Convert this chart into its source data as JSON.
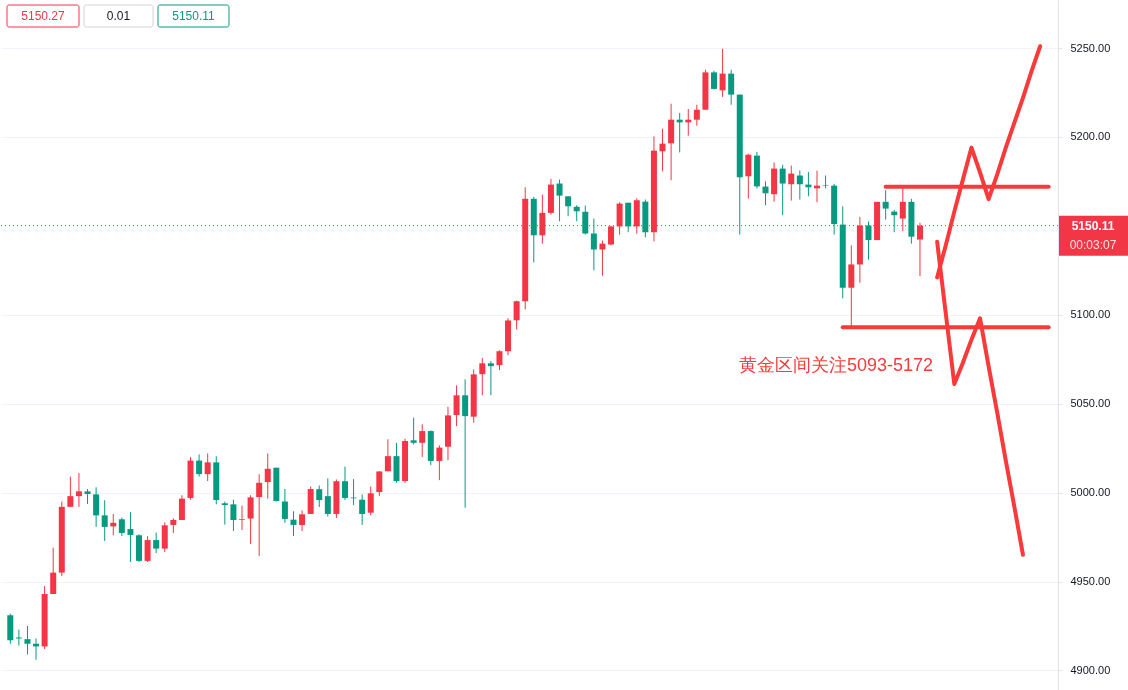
{
  "chart_data": {
    "type": "candlestick",
    "categories": [
      null,
      null,
      null,
      null,
      null,
      null,
      null,
      null,
      null,
      null,
      null,
      null,
      null,
      null,
      null,
      null,
      null,
      null,
      null,
      null,
      null,
      null,
      null,
      null,
      null,
      null,
      null,
      null,
      null,
      null,
      null,
      null,
      null,
      null,
      null,
      null,
      null,
      null,
      null,
      null,
      null,
      null,
      null,
      null,
      null,
      null,
      null,
      null,
      null,
      null,
      null,
      null,
      null,
      null,
      null,
      null,
      null,
      null,
      null,
      null,
      null,
      null,
      null,
      null,
      null,
      null,
      null,
      null,
      null,
      null,
      null,
      null,
      null,
      null,
      null,
      null,
      null,
      null,
      null,
      null,
      null,
      null,
      null,
      null,
      null,
      null,
      null,
      null,
      null,
      null,
      null,
      null,
      null,
      null,
      null,
      null,
      null,
      null,
      null,
      null,
      null,
      null,
      null,
      null,
      null,
      null,
      null,
      null,
      null,
      null,
      null,
      null,
      null,
      null,
      null,
      null,
      null,
      null,
      null,
      null,
      null,
      null
    ],
    "ohlc": [
      [
        4931,
        4932,
        4915,
        4917
      ],
      [
        4918.5,
        4923,
        4914,
        4918
      ],
      [
        4917.6,
        4925,
        4909,
        4915
      ],
      [
        4915,
        4918,
        4906,
        4913.5
      ],
      [
        4913.5,
        4947.5,
        4912,
        4943
      ],
      [
        4943,
        4969,
        4943,
        4955
      ],
      [
        4955,
        4995,
        4953,
        4992
      ],
      [
        4992,
        5009,
        4992,
        4998
      ],
      [
        4998,
        5011,
        4992,
        5000.7
      ],
      [
        5000.7,
        5002,
        4993.6,
        4999.2
      ],
      [
        4999,
        5003,
        4980.7,
        4987.2
      ],
      [
        4987.2,
        4995.7,
        4972.8,
        4980.7
      ],
      [
        4981,
        4988,
        4976,
        4983
      ],
      [
        4985,
        4986,
        4975.6,
        4977.3
      ],
      [
        4979.5,
        4989,
        4961,
        4976.2
      ],
      [
        4976,
        4976.6,
        4961,
        4961.6
      ],
      [
        4961.6,
        4975.5,
        4961,
        4973.3
      ],
      [
        4973.3,
        4977.5,
        4966,
        4968.5
      ],
      [
        4968.5,
        4983.3,
        4966.5,
        4981.6
      ],
      [
        4981.8,
        4985.5,
        4977.3,
        4984.6
      ],
      [
        4984.6,
        4998.5,
        4984.6,
        4996.6
      ],
      [
        4997,
        5020,
        4996,
        5018
      ],
      [
        5018,
        5021.5,
        5009,
        5010.4
      ],
      [
        5010.4,
        5022,
        5006.5,
        5017
      ],
      [
        5017,
        5020.4,
        4993.4,
        4995.8
      ],
      [
        4994,
        4995,
        4982,
        4993
      ],
      [
        4993.4,
        4996,
        4978.4,
        4984.6
      ],
      [
        4984.6,
        4992.7,
        4979,
        4985
      ],
      [
        4985.4,
        4998.5,
        4971.1,
        4997.3
      ],
      [
        4997.5,
        5010.3,
        4964.4,
        5005.5
      ],
      [
        5005.9,
        5022,
        4996.6,
        5013.4
      ],
      [
        5014,
        5014,
        4995,
        4995.3
      ],
      [
        4995,
        5002,
        4983,
        4985.2
      ],
      [
        4984.8,
        4989.5,
        4975.6,
        4981.8
      ],
      [
        4981.8,
        4990,
        4978.4,
        4987.8
      ],
      [
        4988,
        5003.4,
        4988,
        5002
      ],
      [
        5001.9,
        5004,
        4991.9,
        4995.8
      ],
      [
        4998,
        5008,
        4986.5,
        4988
      ],
      [
        4988,
        5007.4,
        4985.7,
        5006.4
      ],
      [
        5006.4,
        5014.6,
        4995.8,
        4997
      ],
      [
        4997.2,
        5007.6,
        4993,
        4996.8
      ],
      [
        4996,
        4999,
        4981.8,
        4988
      ],
      [
        4988.7,
        5003.4,
        4987.2,
        4999.6
      ],
      [
        5000.3,
        5012,
        4998,
        5011.9
      ],
      [
        5012,
        5030,
        5012,
        5020.5
      ],
      [
        5020.5,
        5028,
        5005.5,
        5006.5
      ],
      [
        5006.5,
        5030.3,
        5005.5,
        5029
      ],
      [
        5029.4,
        5042.1,
        5027.1,
        5028
      ],
      [
        5028,
        5038.4,
        5020,
        5034.6
      ],
      [
        5034.6,
        5035,
        5015.5,
        5017.8
      ],
      [
        5017.8,
        5026.6,
        5007,
        5025.3
      ],
      [
        5025.8,
        5048.3,
        5018.3,
        5043.4
      ],
      [
        5043.6,
        5060.3,
        5037.4,
        5054.7
      ],
      [
        5054.7,
        5063.7,
        4991.5,
        5043
      ],
      [
        5042.7,
        5069.3,
        5039.3,
        5066.5
      ],
      [
        5066.6,
        5075.8,
        5054.8,
        5072.7
      ],
      [
        5072.7,
        5074,
        5054.8,
        5071.1
      ],
      [
        5071.7,
        5080,
        5068.9,
        5079.5
      ],
      [
        5079.5,
        5098,
        5077.3,
        5096.8
      ],
      [
        5096.9,
        5108,
        5091.7,
        5107.6
      ],
      [
        5107.6,
        5171.7,
        5103,
        5165.2
      ],
      [
        5165.2,
        5166.3,
        5129.5,
        5144.7
      ],
      [
        5144.7,
        5167.6,
        5140,
        5157.3
      ],
      [
        5157.3,
        5176.4,
        5156.3,
        5173.2
      ],
      [
        5173.8,
        5176,
        5152.6,
        5167
      ],
      [
        5166.6,
        5166.6,
        5155.4,
        5161
      ],
      [
        5160.7,
        5161.6,
        5152.6,
        5158.2
      ],
      [
        5157.9,
        5161.4,
        5145.1,
        5145.7
      ],
      [
        5145.7,
        5154.1,
        5125,
        5136.7
      ],
      [
        5136.7,
        5141.7,
        5122,
        5140
      ],
      [
        5139.5,
        5149.7,
        5139,
        5149.7
      ],
      [
        5149.7,
        5163.3,
        5145,
        5162.5
      ],
      [
        5163,
        5163,
        5146.4,
        5149.7
      ],
      [
        5149.7,
        5165.5,
        5145.6,
        5164.4
      ],
      [
        5163.6,
        5164.8,
        5143.6,
        5146.4
      ],
      [
        5146.4,
        5200.3,
        5141.3,
        5192.3
      ],
      [
        5191.9,
        5204.5,
        5180.7,
        5196.2
      ],
      [
        5196.4,
        5218.7,
        5175.6,
        5209.7
      ],
      [
        5209.7,
        5213.5,
        5191.3,
        5208.2
      ],
      [
        5208.2,
        5215.7,
        5200.7,
        5209.7
      ],
      [
        5209.7,
        5218.1,
        5206.3,
        5215.3
      ],
      [
        5215.3,
        5237.8,
        5215.3,
        5236.3
      ],
      [
        5236.3,
        5237.2,
        5226.6,
        5227
      ],
      [
        5226.2,
        5249.6,
        5222.5,
        5235.6
      ],
      [
        5235.6,
        5237.8,
        5218.1,
        5223.8
      ],
      [
        5223.8,
        5223.8,
        5145.1,
        5177.3
      ],
      [
        5177.9,
        5190.6,
        5165.3,
        5190
      ],
      [
        5189.5,
        5191.6,
        5171,
        5172.2
      ],
      [
        5172.1,
        5175,
        5161.6,
        5168.3
      ],
      [
        5167.8,
        5185.7,
        5163.6,
        5182.2
      ],
      [
        5182.2,
        5184.4,
        5156,
        5173.8
      ],
      [
        5173.4,
        5183.9,
        5164.2,
        5179.4
      ],
      [
        5178.3,
        5181.2,
        5164.8,
        5173.4
      ],
      [
        5173.2,
        5180.3,
        5166.6,
        5171.7
      ],
      [
        5171.1,
        5181,
        5163.3,
        5172.6
      ],
      [
        5172.8,
        5178.3,
        5171.1,
        5172.5
      ],
      [
        5172.6,
        5173.6,
        5145.1,
        5151
      ],
      [
        5150.7,
        5161,
        5109.2,
        5115.2
      ],
      [
        5115.2,
        5139,
        5093,
        5128.3
      ],
      [
        5128.3,
        5155,
        5118,
        5150.2
      ],
      [
        5150.2,
        5152.4,
        5131,
        5142
      ],
      [
        5142,
        5163.5,
        5142,
        5163.5
      ],
      [
        5163.5,
        5170,
        5153.5,
        5159.7
      ],
      [
        5158,
        5159,
        5146.4,
        5156
      ],
      [
        5154.1,
        5171,
        5147,
        5163.5
      ],
      [
        5163.5,
        5165.2,
        5140,
        5143.9
      ],
      [
        5142.3,
        5151.7,
        5121.7,
        5150.11
      ],
      null,
      null,
      null,
      null,
      null,
      null,
      null,
      null,
      null,
      null,
      null,
      null,
      null,
      null,
      null
    ],
    "colors": [
      "#089981",
      "#089981",
      "#089981",
      "#089981",
      "#f23645",
      "#f23645",
      "#f23645",
      "#f23645",
      "#f23645",
      "#089981",
      "#089981",
      "#089981",
      "#f23645",
      "#089981",
      "#089981",
      "#089981",
      "#f23645",
      "#089981",
      "#f23645",
      "#f23645",
      "#f23645",
      "#f23645",
      "#089981",
      "#f23645",
      "#089981",
      "#089981",
      "#089981",
      "#f23645",
      "#f23645",
      "#f23645",
      "#f23645",
      "#089981",
      "#089981",
      "#089981",
      "#f23645",
      "#f23645",
      "#089981",
      "#089981",
      "#f23645",
      "#089981",
      "#089981",
      "#089981",
      "#f23645",
      "#f23645",
      "#f23645",
      "#089981",
      "#f23645",
      "#089981",
      "#f23645",
      "#089981",
      "#f23645",
      "#f23645",
      "#f23645",
      "#089981",
      "#f23645",
      "#f23645",
      "#089981",
      "#f23645",
      "#f23645",
      "#f23645",
      "#f23645",
      "#089981",
      "#f23645",
      "#f23645",
      "#089981",
      "#089981",
      "#089981",
      "#089981",
      "#089981",
      "#f23645",
      "#f23645",
      "#f23645",
      "#089981",
      "#f23645",
      "#089981",
      "#f23645",
      "#f23645",
      "#f23645",
      "#089981",
      "#f23645",
      "#f23645",
      "#f23645",
      "#089981",
      "#f23645",
      "#089981",
      "#089981",
      "#f23645",
      "#089981",
      "#089981",
      "#f23645",
      "#089981",
      "#f23645",
      "#089981",
      "#089981",
      "#f23645",
      "#089981",
      "#089981",
      "#089981",
      "#f23645",
      "#f23645",
      "#089981",
      "#f23645",
      "#089981",
      "#089981",
      "#f23645",
      "#089981",
      "#f23645",
      null,
      null,
      null,
      null,
      null,
      null,
      null,
      null,
      null,
      null,
      null,
      null,
      null,
      null,
      null
    ],
    "series": [
      {
        "type": "line",
        "color": "#f83a3a",
        "values": [
          null,
          null,
          null,
          null,
          null,
          null,
          null,
          null,
          null,
          null,
          null,
          null,
          null,
          null,
          null,
          null,
          null,
          null,
          null,
          null,
          null,
          null,
          null,
          null,
          null,
          null,
          null,
          null,
          null,
          null,
          null,
          null,
          null,
          null,
          null,
          null,
          null,
          null,
          null,
          null,
          null,
          null,
          null,
          null,
          null,
          null,
          null,
          null,
          null,
          null,
          null,
          null,
          null,
          null,
          null,
          null,
          null,
          null,
          null,
          null,
          null,
          null,
          null,
          null,
          null,
          null,
          null,
          null,
          null,
          null,
          null,
          null,
          null,
          null,
          null,
          null,
          null,
          null,
          null,
          null,
          null,
          null,
          null,
          null,
          null,
          null,
          null,
          null,
          null,
          null,
          null,
          null,
          null,
          null,
          null,
          null,
          null,
          null,
          null,
          null,
          null,
          null,
          5172,
          5172,
          5172,
          5172,
          5172,
          5172,
          5172,
          5172,
          5172,
          5172,
          5172,
          5172,
          5172,
          5172,
          5172,
          5172,
          5172,
          5172,
          5172,
          5172
        ]
      },
      {
        "type": "line",
        "color": "#f83a3a",
        "values": [
          null,
          null,
          null,
          null,
          null,
          null,
          null,
          null,
          null,
          null,
          null,
          null,
          null,
          null,
          null,
          null,
          null,
          null,
          null,
          null,
          null,
          null,
          null,
          null,
          null,
          null,
          null,
          null,
          null,
          null,
          null,
          null,
          null,
          null,
          null,
          null,
          null,
          null,
          null,
          null,
          null,
          null,
          null,
          null,
          null,
          null,
          null,
          null,
          null,
          null,
          null,
          null,
          null,
          null,
          null,
          null,
          null,
          null,
          null,
          null,
          null,
          null,
          null,
          null,
          null,
          null,
          null,
          null,
          null,
          null,
          null,
          null,
          null,
          null,
          null,
          null,
          null,
          null,
          null,
          null,
          null,
          null,
          null,
          null,
          null,
          null,
          null,
          null,
          null,
          null,
          null,
          null,
          null,
          null,
          null,
          null,
          null,
          5093,
          5093,
          5093,
          5093,
          5093,
          5093,
          5093,
          5093,
          5093,
          5093,
          5093,
          5093,
          5093,
          5093,
          5093,
          5093,
          5093,
          5093,
          5093,
          5093,
          5093,
          5093,
          5093,
          5093,
          5093
        ]
      },
      {
        "type": "line",
        "color": "#f83a3a",
        "values": [
          null,
          null,
          null,
          null,
          null,
          null,
          null,
          null,
          null,
          null,
          null,
          null,
          null,
          null,
          null,
          null,
          null,
          null,
          null,
          null,
          null,
          null,
          null,
          null,
          null,
          null,
          null,
          null,
          null,
          null,
          null,
          null,
          null,
          null,
          null,
          null,
          null,
          null,
          null,
          null,
          null,
          null,
          null,
          null,
          null,
          null,
          null,
          null,
          null,
          null,
          null,
          null,
          null,
          null,
          null,
          null,
          null,
          null,
          null,
          null,
          null,
          null,
          null,
          null,
          null,
          null,
          null,
          null,
          null,
          null,
          null,
          null,
          null,
          null,
          null,
          null,
          null,
          null,
          null,
          null,
          null,
          null,
          null,
          null,
          null,
          null,
          null,
          null,
          null,
          null,
          null,
          null,
          null,
          null,
          null,
          null,
          null,
          null,
          null,
          null,
          null,
          null,
          null,
          null,
          null,
          null,
          null,
          null,
          5121,
          5139,
          5158,
          5176,
          5194,
          5180,
          5165,
          5179,
          5194,
          5208,
          5222,
          5237,
          5251,
          null
        ]
      },
      {
        "type": "line",
        "color": "#f83a3a",
        "values": [
          null,
          null,
          null,
          null,
          null,
          null,
          null,
          null,
          null,
          null,
          null,
          null,
          null,
          null,
          null,
          null,
          null,
          null,
          null,
          null,
          null,
          null,
          null,
          null,
          null,
          null,
          null,
          null,
          null,
          null,
          null,
          null,
          null,
          null,
          null,
          null,
          null,
          null,
          null,
          null,
          null,
          null,
          null,
          null,
          null,
          null,
          null,
          null,
          null,
          null,
          null,
          null,
          null,
          null,
          null,
          null,
          null,
          null,
          null,
          null,
          null,
          null,
          null,
          null,
          null,
          null,
          null,
          null,
          null,
          null,
          null,
          null,
          null,
          null,
          null,
          null,
          null,
          null,
          null,
          null,
          null,
          null,
          null,
          null,
          null,
          null,
          null,
          null,
          null,
          null,
          null,
          null,
          null,
          null,
          null,
          null,
          null,
          null,
          null,
          null,
          null,
          null,
          null,
          null,
          null,
          null,
          null,
          null,
          5141,
          5101,
          5061,
          5073,
          5086,
          5098,
          5071,
          5045,
          5018,
          4992,
          4965,
          null,
          null,
          null
        ]
      }
    ],
    "ylim": [
      4889,
      5277
    ],
    "yticks": [
      {
        "value": 4900,
        "label": "4900.00"
      },
      {
        "value": 4950,
        "label": "4950.00"
      },
      {
        "value": 5000,
        "label": "5000.00"
      },
      {
        "value": 5050,
        "label": "5050.00"
      },
      {
        "value": 5100,
        "label": "5100.00"
      },
      {
        "value": 5200,
        "label": "5200.00"
      },
      {
        "value": 5250,
        "label": "5250.00"
      }
    ],
    "ref_lines": [
      {
        "axis": "y",
        "value": 5150.11,
        "label": "5150.11",
        "color": "#f23645",
        "line_style": "dotted"
      }
    ],
    "annotations": [
      "5150.27",
      "0.01",
      "5150.11",
      "黄金区间关注5093-5172",
      "00:03:07"
    ],
    "grid": "y",
    "tick_labels": "y"
  }
}
